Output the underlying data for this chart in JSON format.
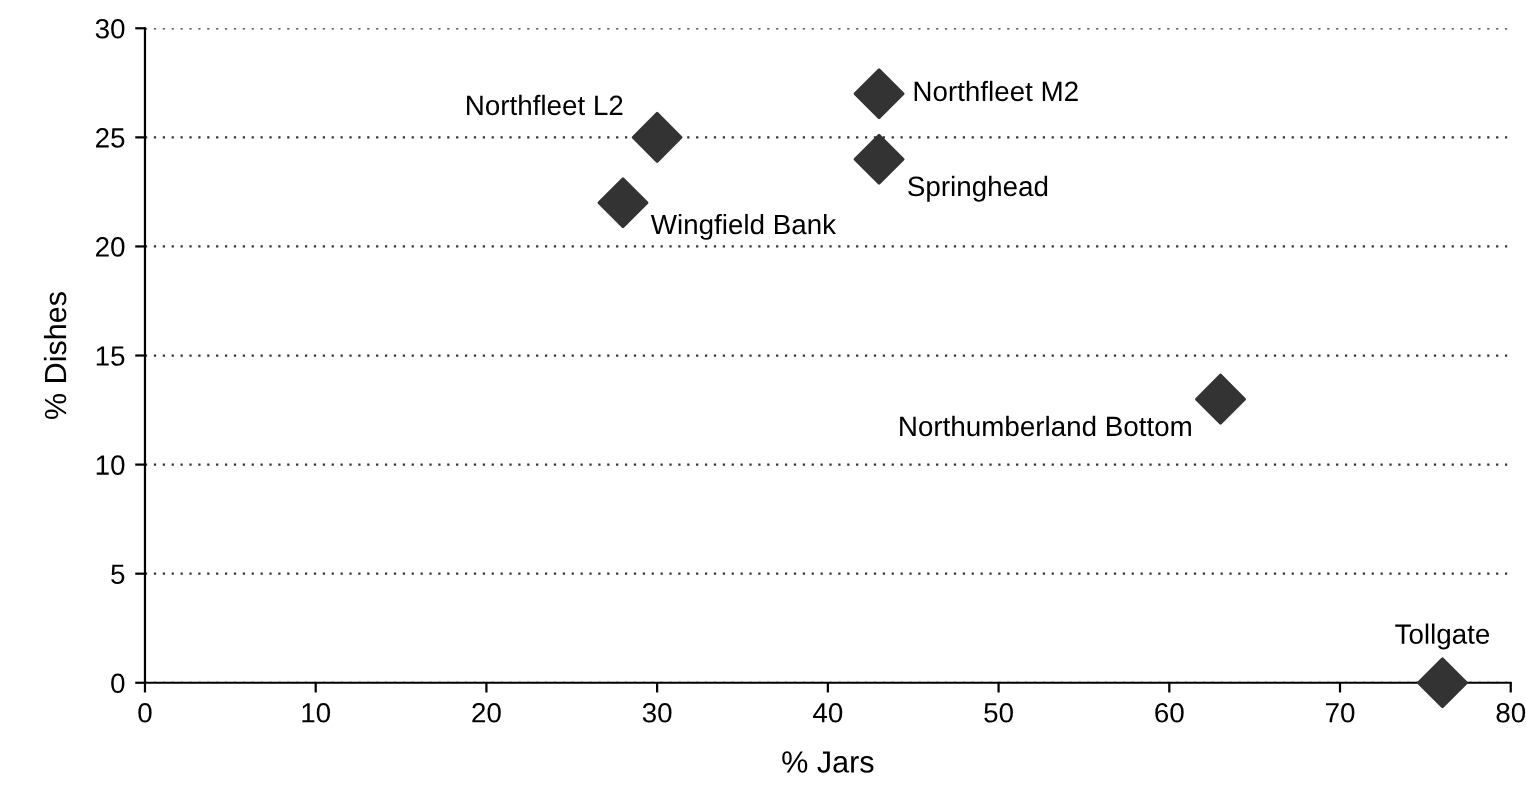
{
  "chart_data": {
    "type": "scatter",
    "xlabel": "% Jars",
    "ylabel": "% Dishes",
    "x": [
      30,
      43,
      43,
      28,
      63,
      76
    ],
    "values": [
      25,
      27,
      24,
      22,
      13,
      0
    ],
    "color": "#333333",
    "marker": "diamond",
    "xlim": [
      0,
      80
    ],
    "xticks": [
      0,
      10,
      20,
      30,
      40,
      50,
      60,
      70,
      80
    ],
    "ylim": [
      0,
      30
    ],
    "yticks": [
      0,
      5,
      10,
      15,
      20,
      25,
      30
    ],
    "grid": "y",
    "legend": false,
    "annotations": [
      {
        "text": "Northfleet L2",
        "x": 30,
        "y": 25
      },
      {
        "text": "Northfleet M2",
        "x": 43,
        "y": 27
      },
      {
        "text": "Springhead",
        "x": 43,
        "y": 24
      },
      {
        "text": "Wingfield Bank",
        "x": 28,
        "y": 22
      },
      {
        "text": "Northumberland Bottom",
        "x": 63,
        "y": 13
      },
      {
        "text": "Tollgate",
        "x": 76,
        "y": 0
      }
    ]
  }
}
